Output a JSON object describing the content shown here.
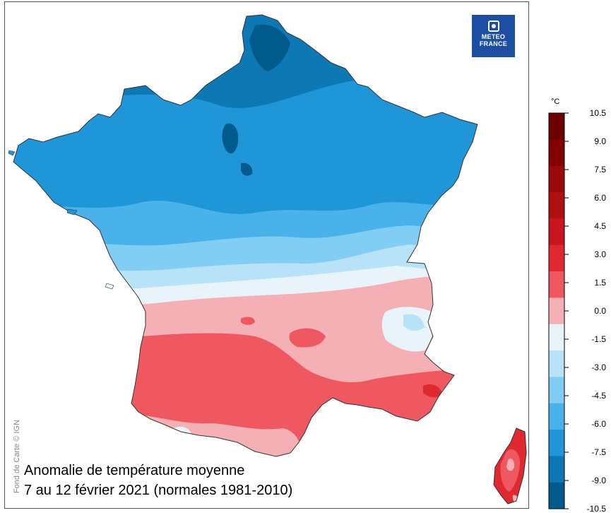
{
  "map": {
    "credit": "Fond de Carte © IGN",
    "logo": {
      "line1": "METEO",
      "line2": "FRANCE",
      "color": "#1c4fa3"
    },
    "caption": {
      "line1": "Anomalie de température moyenne",
      "line2": "7 au 12 février 2021 (normales 1981-2010)"
    },
    "legend": {
      "unit": "°C",
      "ticks": [
        "10.5",
        "9.0",
        "7.5",
        "6.0",
        "4.5",
        "3.0",
        "1.5",
        "0.0",
        "-1.5",
        "-3.0",
        "-4.5",
        "-6.0",
        "-7.5",
        "-9.0",
        "-10.5"
      ],
      "colors": [
        "#6e0000",
        "#820000",
        "#9a0a0a",
        "#b01010",
        "#c81520",
        "#e02830",
        "#ef5860",
        "#f5b0b5",
        "#e8f4fa",
        "#b8e2f7",
        "#82cdf3",
        "#4ab2ea",
        "#1f96d8",
        "#0d78b4",
        "#005a8c"
      ]
    },
    "regions": [
      "France métropolitaine",
      "Corse"
    ]
  }
}
